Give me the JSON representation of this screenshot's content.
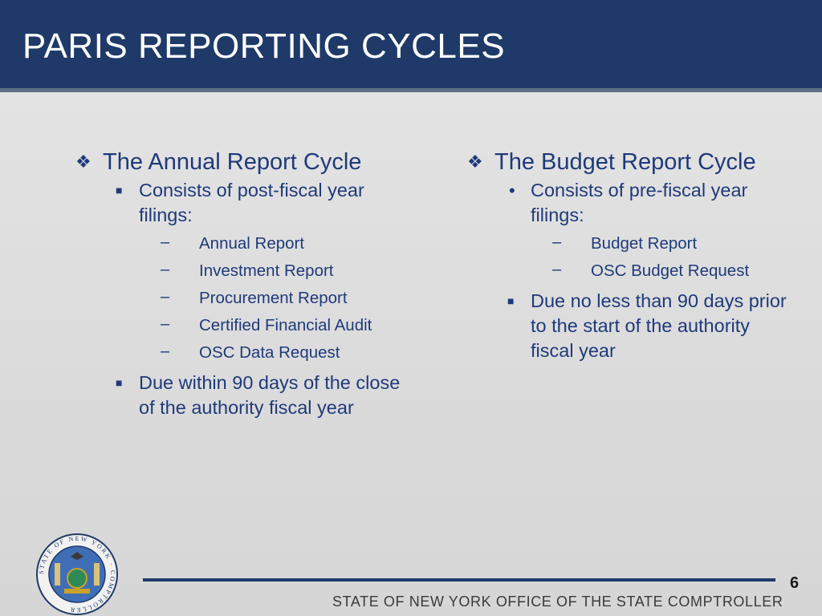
{
  "slide": {
    "title": "PARIS REPORTING CYCLES",
    "page_number": "6",
    "footer": "STATE OF NEW YORK OFFICE OF THE STATE COMPTROLLER",
    "seal_text": "STATE OF NEW YORK · COMPTROLLER",
    "colors": {
      "title_bar": "#1f3a68",
      "text": "#1f3a7a",
      "background": "#dcdcdc"
    }
  },
  "left": {
    "heading": "The Annual Report Cycle",
    "bullet1": "Consists of post-fiscal year filings:",
    "items": [
      "Annual Report",
      "Investment Report",
      "Procurement Report",
      "Certified Financial Audit",
      "OSC Data Request"
    ],
    "bullet2": "Due within 90 days of the close of the authority fiscal year"
  },
  "right": {
    "heading": "The Budget Report Cycle",
    "bullet1": "Consists of pre-fiscal year filings:",
    "items": [
      "Budget Report",
      "OSC Budget Request"
    ],
    "bullet2": "Due no less than 90 days prior to the start of the authority fiscal year"
  }
}
